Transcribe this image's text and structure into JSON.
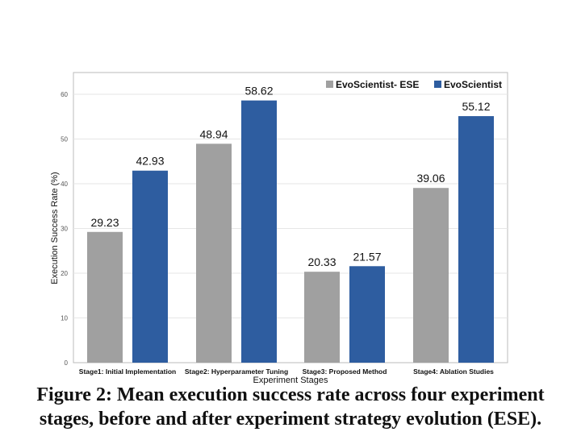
{
  "chart_data": {
    "type": "bar",
    "categories": [
      "Stage1: Initial Implementation",
      "Stage2: Hyperparameter Tuning",
      "Stage3: Proposed Method",
      "Stage4: Ablation Studies"
    ],
    "series": [
      {
        "name": "EvoScientist- ESE",
        "color": "#a0a0a0",
        "values": [
          29.23,
          48.94,
          20.33,
          39.06
        ]
      },
      {
        "name": "EvoScientist",
        "color": "#2e5da0",
        "values": [
          42.93,
          58.62,
          21.57,
          55.12
        ]
      }
    ],
    "value_labels": [
      [
        "29.23",
        "48.94",
        "20.33",
        "39.06"
      ],
      [
        "42.93",
        "58.62",
        "21.57",
        "55.12"
      ]
    ],
    "xlabel": "Experiment Stages",
    "ylabel": "Execution Success Rate (%)",
    "ylim": [
      0,
      65
    ],
    "yticks": [
      0,
      10,
      20,
      30,
      40,
      50,
      60
    ],
    "grid": true,
    "legend_position": "top-right"
  },
  "caption": {
    "line1": "Figure 2: Mean execution success rate across four experiment",
    "line2": "stages, before and after experiment strategy evolution (ESE)."
  }
}
